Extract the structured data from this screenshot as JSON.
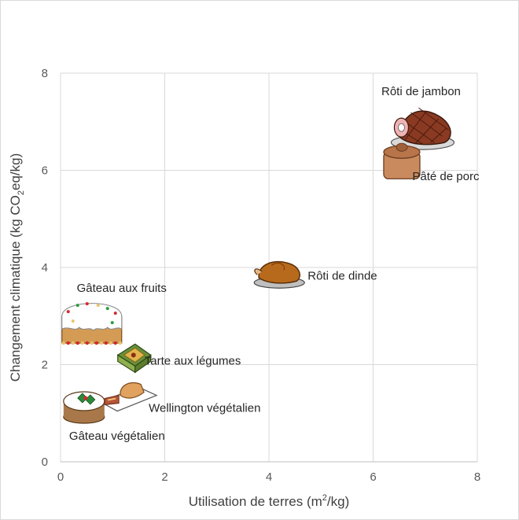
{
  "chart_data": {
    "type": "scatter",
    "title": "",
    "xlabel": {
      "main": "Utilisation de terres (m",
      "sup": "2",
      "unit": "/kg)"
    },
    "ylabel": {
      "main": "Changement climatique (kg CO",
      "sub": "2",
      "unit": "eq/kg)"
    },
    "xlim": [
      0,
      8
    ],
    "ylim": [
      0,
      8
    ],
    "xticks": [
      0,
      2,
      4,
      6,
      8
    ],
    "yticks": [
      0,
      2,
      4,
      6,
      8
    ],
    "grid": true,
    "points": [
      {
        "label": "Rôti de jambon",
        "icon": "ham-icon",
        "x": 6.95,
        "y": 6.8
      },
      {
        "label": "Pâté de porc",
        "icon": "pork-pie-icon",
        "x": 6.55,
        "y": 6.15
      },
      {
        "label": "Rôti de dinde",
        "icon": "roast-turkey-icon",
        "x": 4.2,
        "y": 3.85
      },
      {
        "label": "Gâteau aux fruits",
        "icon": "fruit-cake-icon",
        "x": 0.6,
        "y": 2.8
      },
      {
        "label": "Tarte aux légumes",
        "icon": "vegetable-tart-icon",
        "x": 1.4,
        "y": 2.1
      },
      {
        "label": "Wellington végétalien",
        "icon": "vegan-wellington-icon",
        "x": 1.3,
        "y": 1.4
      },
      {
        "label": "Gâteau végétalien",
        "icon": "vegan-cake-icon",
        "x": 0.45,
        "y": 1.15
      }
    ]
  },
  "colors": {
    "grid": "#d9d9d9",
    "axis": "#bfbfbf",
    "text": "#262626",
    "tick": "#595959"
  }
}
